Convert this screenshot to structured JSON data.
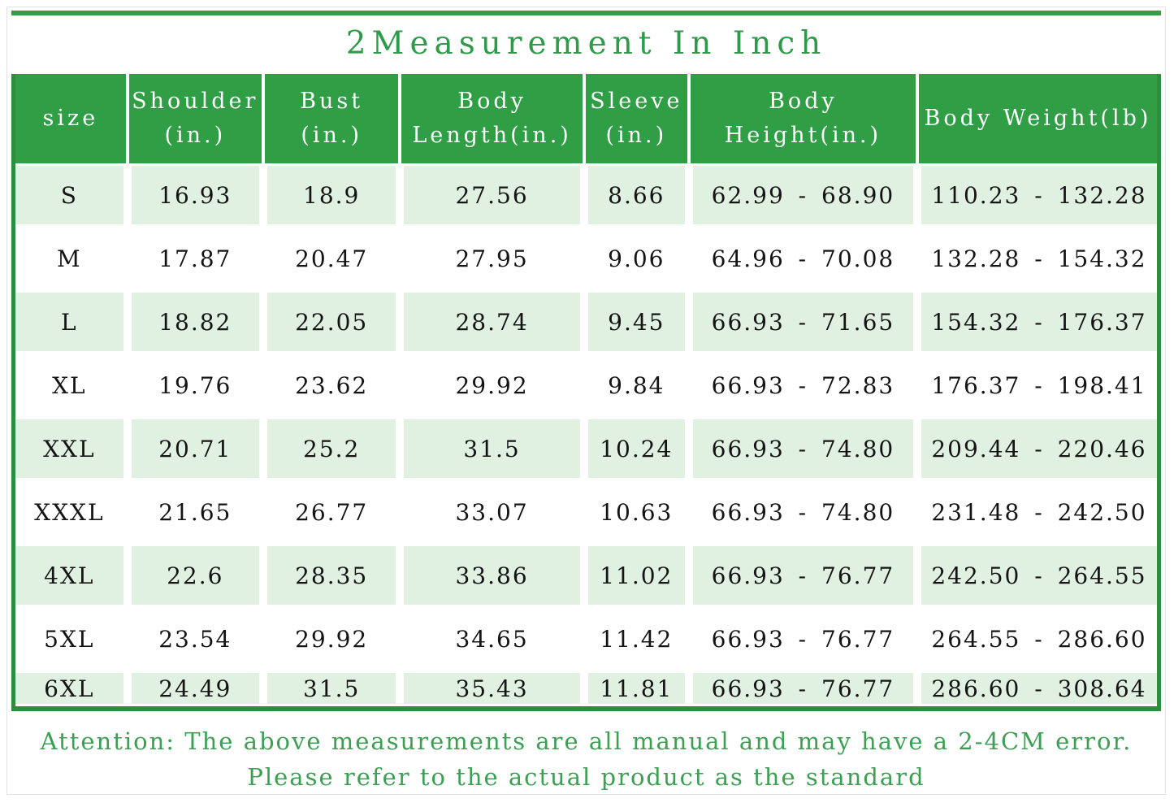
{
  "title": "2Measurement In Inch",
  "note": {
    "line1": "Attention: The above measurements are all manual and may have a 2-4CM error.",
    "line2": "Please refer to the actual product as the standard"
  },
  "colors": {
    "header_bg": "#2f9e44",
    "row_alt_bg": "#e0f1e1",
    "frame_green": "#2e8c3c",
    "top_rule_green": "#3a9a49",
    "title_green": "#2f9a4a",
    "note_green": "#3d9f53",
    "cell_text": "#141414"
  },
  "chart_data": {
    "type": "table",
    "title": "2Measurement In Inch",
    "columns": [
      "size",
      "Shoulder\n(in.)",
      "Bust\n(in.)",
      "Body\nLength(in.)",
      "Sleeve\n(in.)",
      "Body\nHeight(in.)",
      "Body Weight(lb)"
    ],
    "rows": [
      [
        "S",
        "16.93",
        "18.9",
        "27.56",
        "8.66",
        "62.99 - 68.90",
        "110.23 - 132.28"
      ],
      [
        "M",
        "17.87",
        "20.47",
        "27.95",
        "9.06",
        "64.96 - 70.08",
        "132.28 - 154.32"
      ],
      [
        "L",
        "18.82",
        "22.05",
        "28.74",
        "9.45",
        "66.93 - 71.65",
        "154.32 - 176.37"
      ],
      [
        "XL",
        "19.76",
        "23.62",
        "29.92",
        "9.84",
        "66.93 - 72.83",
        "176.37 - 198.41"
      ],
      [
        "XXL",
        "20.71",
        "25.2",
        "31.5",
        "10.24",
        "66.93 - 74.80",
        "209.44 - 220.46"
      ],
      [
        "XXXL",
        "21.65",
        "26.77",
        "33.07",
        "10.63",
        "66.93 - 74.80",
        "231.48 - 242.50"
      ],
      [
        "4XL",
        "22.6",
        "28.35",
        "33.86",
        "11.02",
        "66.93 - 76.77",
        "242.50 - 264.55"
      ],
      [
        "5XL",
        "23.54",
        "29.92",
        "34.65",
        "11.42",
        "66.93 - 76.77",
        "264.55 - 286.60"
      ],
      [
        "6XL",
        "24.49",
        "31.5",
        "35.43",
        "11.81",
        "66.93 - 76.77",
        "286.60 - 308.64"
      ]
    ],
    "annotations": [
      "Attention: The above measurements are all manual and may have a 2-4CM error.",
      "Please refer to the actual product as the standard"
    ],
    "layout": {
      "row_striping": "odd rows light green, even rows white",
      "header_style": "green background, white text",
      "column_width_pct": [
        9.8,
        11.9,
        12.0,
        16.1,
        9.2,
        20.0,
        21.0
      ]
    }
  }
}
